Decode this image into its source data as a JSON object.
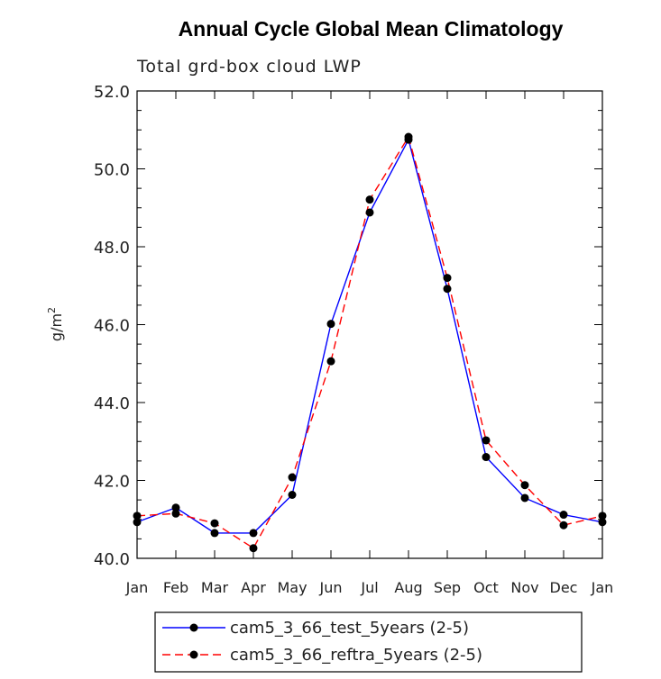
{
  "chart_data": {
    "type": "line",
    "title": "Annual Cycle Global Mean Climatology",
    "subtitle": "Total grd-box cloud LWP",
    "xlabel": "",
    "ylabel": "g/m",
    "ylabel_superscript": "2",
    "ylim": [
      40.0,
      52.0
    ],
    "yticks": [
      "40.0",
      "42.0",
      "44.0",
      "46.0",
      "48.0",
      "50.0",
      "52.0"
    ],
    "categories": [
      "Jan",
      "Feb",
      "Mar",
      "Apr",
      "May",
      "Jun",
      "Jul",
      "Aug",
      "Sep",
      "Oct",
      "Nov",
      "Dec",
      "Jan"
    ],
    "series": [
      {
        "name": "cam5_3_66_test_5years (2-5)",
        "color": "#0000ff",
        "dash": "solid",
        "values": [
          40.93,
          41.3,
          40.65,
          40.65,
          41.63,
          46.02,
          48.88,
          50.75,
          46.92,
          42.6,
          41.55,
          41.12,
          40.93
        ]
      },
      {
        "name": "cam5_3_66_reftra_5years (2-5)",
        "color": "#ff0000",
        "dash": "dashed",
        "values": [
          41.09,
          41.15,
          40.9,
          40.26,
          42.08,
          45.06,
          49.21,
          50.82,
          47.2,
          43.03,
          41.88,
          40.85,
          41.09
        ]
      }
    ],
    "legend_position": "bottom"
  }
}
